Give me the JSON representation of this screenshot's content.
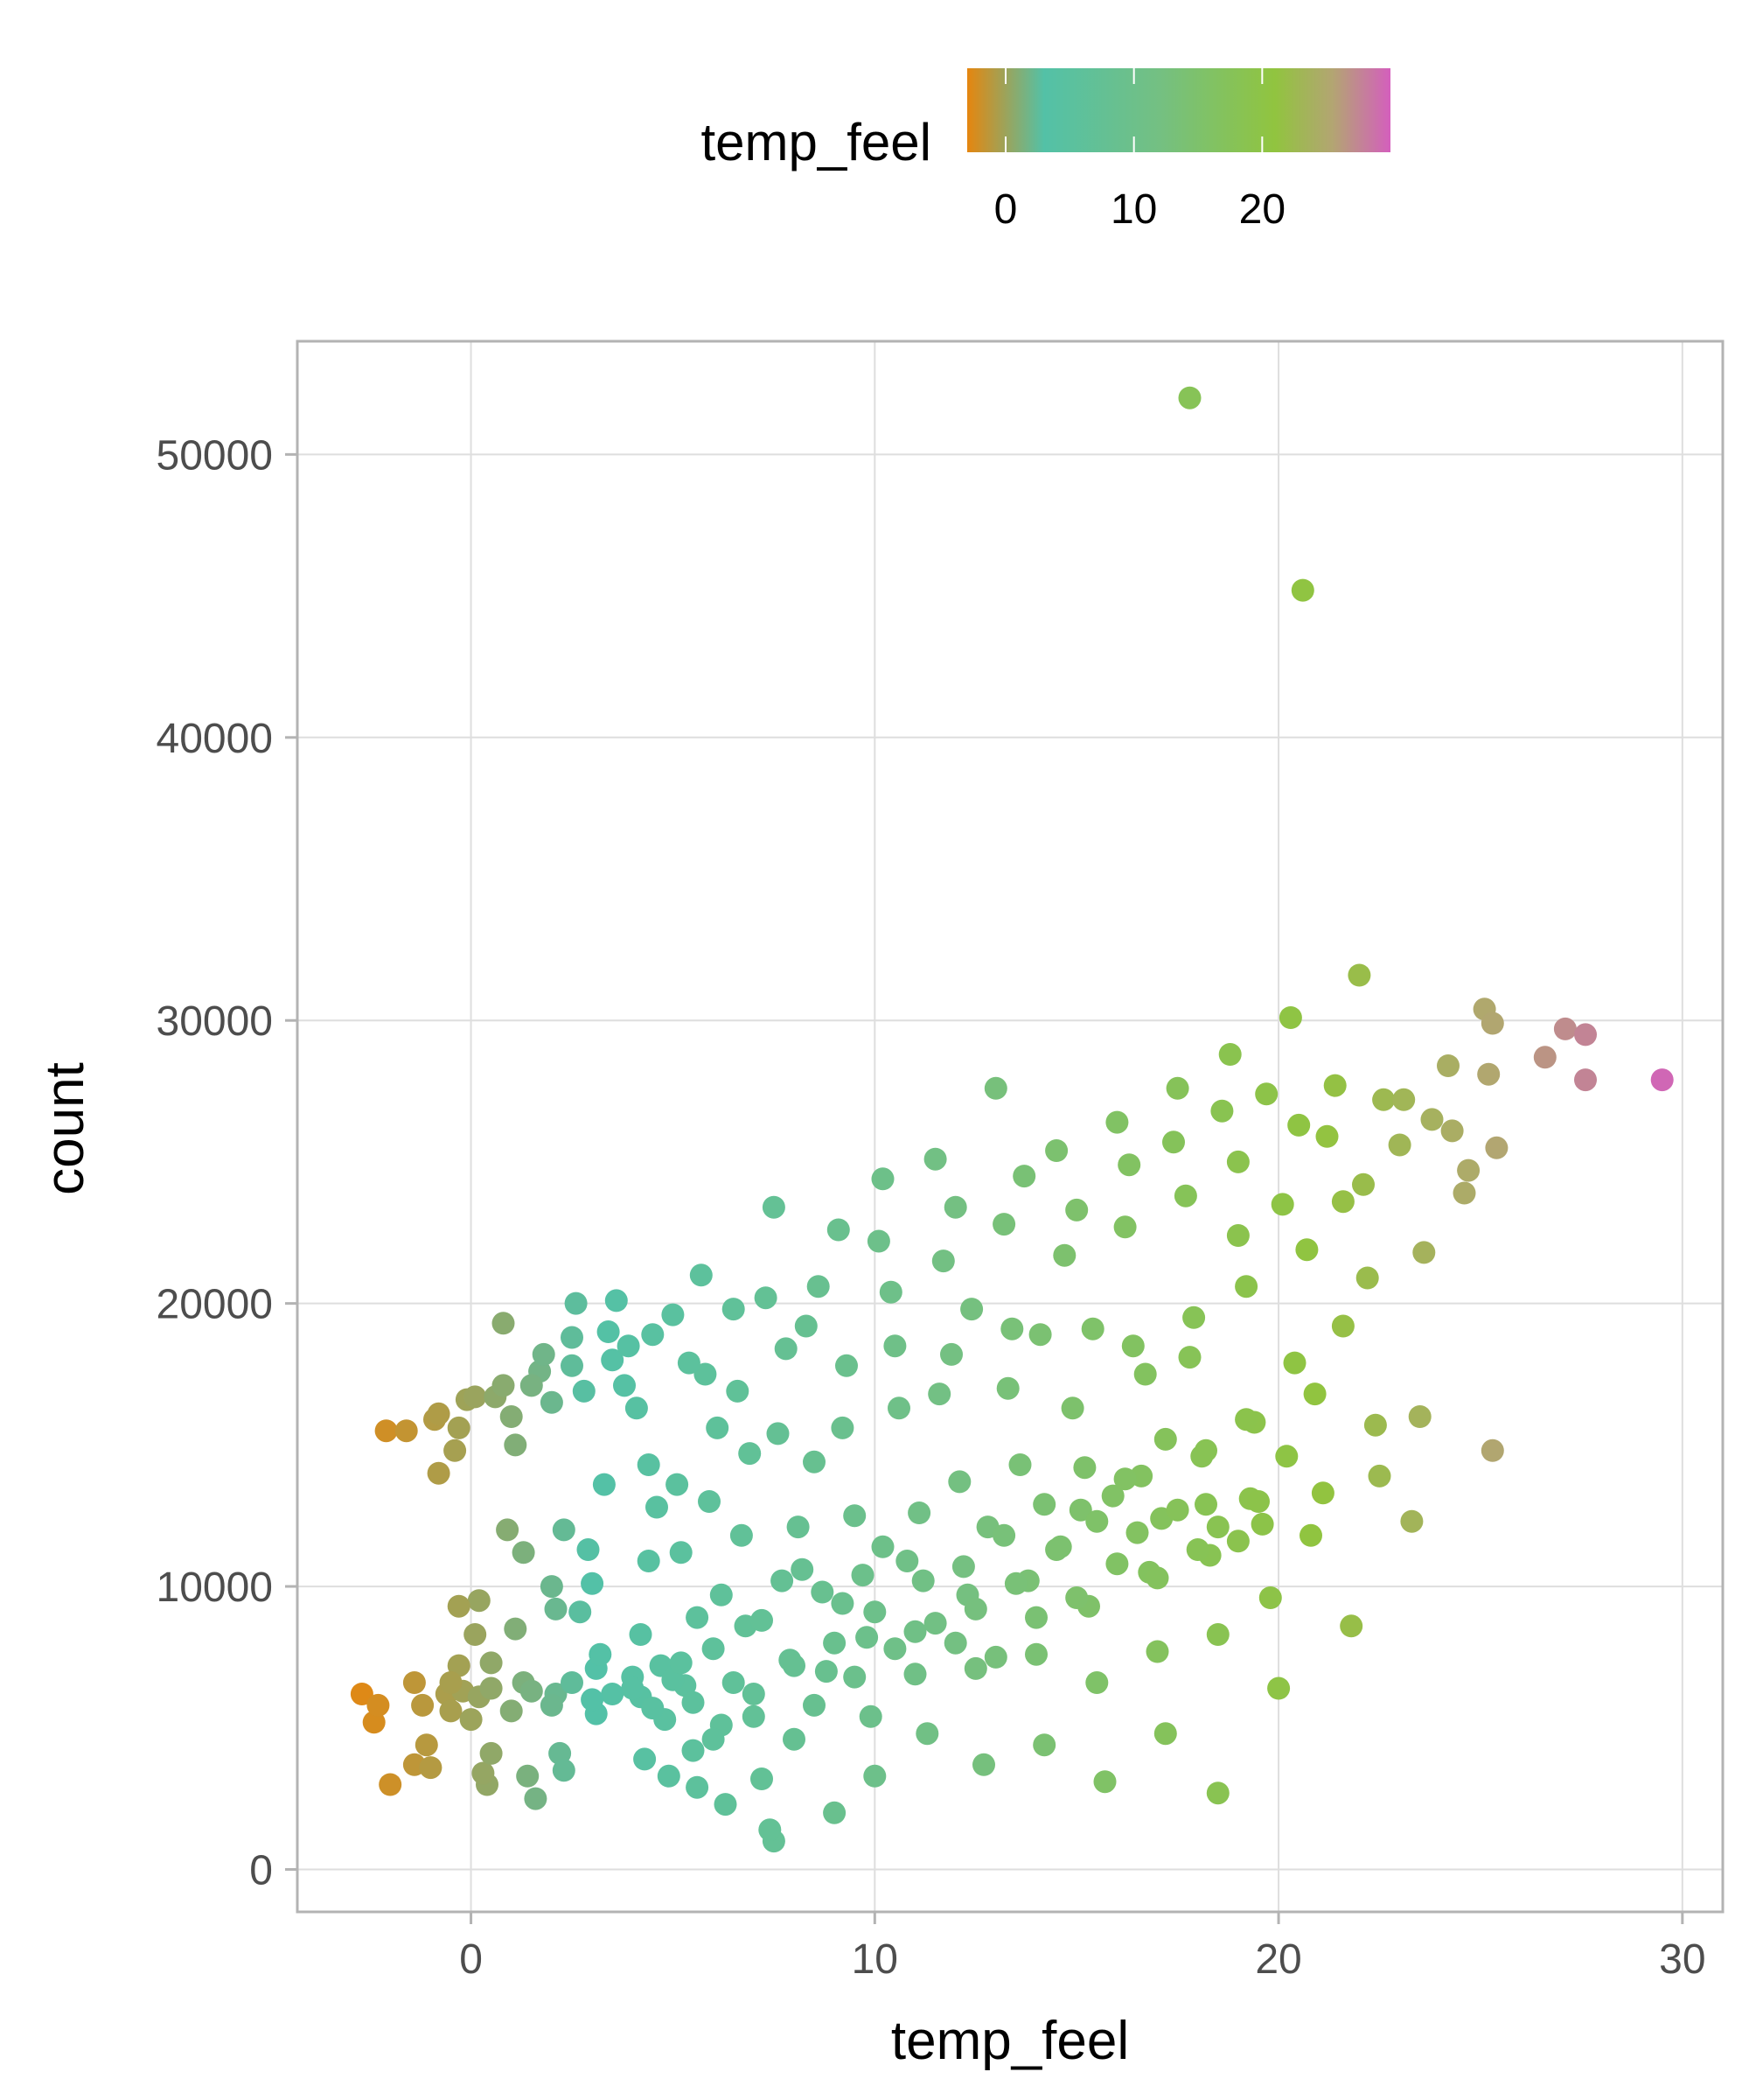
{
  "chart_data": {
    "type": "scatter",
    "title": "",
    "xlabel": "temp_feel",
    "ylabel": "count",
    "xlim": [
      -4.3,
      31.0
    ],
    "ylim": [
      -1500,
      54000
    ],
    "x_ticks": [
      0,
      10,
      20,
      30
    ],
    "x_tick_labels": [
      "0",
      "10",
      "20",
      "30"
    ],
    "y_ticks": [
      0,
      10000,
      20000,
      30000,
      40000,
      50000
    ],
    "y_tick_labels": [
      "0",
      "10000",
      "20000",
      "30000",
      "40000",
      "50000"
    ],
    "grid": true,
    "legend": {
      "placement": "top",
      "title": "temp_feel",
      "type": "colorbar",
      "ticks": [
        0,
        10,
        20
      ],
      "tick_labels": [
        "0",
        "10",
        "20"
      ],
      "range": [
        -3,
        30
      ],
      "color_stops": [
        {
          "value": -3,
          "color": "#e5860f"
        },
        {
          "value": 3,
          "color": "#53c1a7"
        },
        {
          "value": 12,
          "color": "#74c082"
        },
        {
          "value": 21,
          "color": "#91c43f"
        },
        {
          "value": 25.5,
          "color": "#b3a572"
        },
        {
          "value": 30,
          "color": "#d45fbd"
        }
      ]
    },
    "colors": {
      "panel_border": "#b3b3b3",
      "grid": "#dedede"
    },
    "points": [
      [
        -2.1,
        15500
      ],
      [
        -2.7,
        6200
      ],
      [
        -2.4,
        5200
      ],
      [
        -2.3,
        5800
      ],
      [
        -2.0,
        3000
      ],
      [
        -1.4,
        3700
      ],
      [
        -1.4,
        6600
      ],
      [
        -1.2,
        5800
      ],
      [
        -1.0,
        3600
      ],
      [
        -0.9,
        15900
      ],
      [
        -0.8,
        16100
      ],
      [
        -0.8,
        14000
      ],
      [
        -0.6,
        6200
      ],
      [
        -0.5,
        5600
      ],
      [
        -0.3,
        7200
      ],
      [
        -0.2,
        6300
      ],
      [
        -0.4,
        14800
      ],
      [
        -0.3,
        15600
      ],
      [
        -0.1,
        16600
      ],
      [
        0.1,
        16700
      ],
      [
        0.2,
        9500
      ],
      [
        0.1,
        8300
      ],
      [
        0.2,
        6100
      ],
      [
        0.4,
        3000
      ],
      [
        0.3,
        3400
      ],
      [
        0.5,
        4100
      ],
      [
        0.6,
        16700
      ],
      [
        0.8,
        17100
      ],
      [
        0.8,
        19300
      ],
      [
        0.9,
        12000
      ],
      [
        1.0,
        16000
      ],
      [
        1.1,
        15000
      ],
      [
        1.1,
        8500
      ],
      [
        1.3,
        11200
      ],
      [
        1.3,
        6600
      ],
      [
        1.4,
        3300
      ],
      [
        1.6,
        2500
      ],
      [
        1.7,
        17600
      ],
      [
        1.8,
        18200
      ],
      [
        2.0,
        16500
      ],
      [
        2.0,
        10000
      ],
      [
        2.1,
        9200
      ],
      [
        2.1,
        6200
      ],
      [
        2.2,
        4100
      ],
      [
        2.3,
        3500
      ],
      [
        2.5,
        17800
      ],
      [
        2.5,
        18800
      ],
      [
        2.6,
        20000
      ],
      [
        2.8,
        16900
      ],
      [
        2.9,
        11300
      ],
      [
        3.0,
        10100
      ],
      [
        3.1,
        7100
      ],
      [
        3.1,
        5500
      ],
      [
        3.4,
        19000
      ],
      [
        3.5,
        18000
      ],
      [
        3.6,
        20100
      ],
      [
        3.8,
        17100
      ],
      [
        3.9,
        18500
      ],
      [
        4.0,
        6800
      ],
      [
        4.2,
        6100
      ],
      [
        4.3,
        3900
      ],
      [
        4.4,
        14300
      ],
      [
        4.5,
        18900
      ],
      [
        4.6,
        12800
      ],
      [
        4.7,
        7200
      ],
      [
        4.8,
        5300
      ],
      [
        4.9,
        3300
      ],
      [
        5.0,
        19600
      ],
      [
        5.1,
        13600
      ],
      [
        5.2,
        11200
      ],
      [
        5.3,
        6500
      ],
      [
        5.5,
        4200
      ],
      [
        5.6,
        2900
      ],
      [
        5.7,
        21000
      ],
      [
        5.8,
        17500
      ],
      [
        5.9,
        13000
      ],
      [
        6.0,
        7800
      ],
      [
        6.2,
        5100
      ],
      [
        6.3,
        2300
      ],
      [
        6.5,
        19800
      ],
      [
        6.6,
        16900
      ],
      [
        6.7,
        11800
      ],
      [
        6.8,
        8600
      ],
      [
        7.0,
        6200
      ],
      [
        7.2,
        3200
      ],
      [
        7.3,
        20200
      ],
      [
        7.5,
        23400
      ],
      [
        7.6,
        15400
      ],
      [
        7.7,
        10200
      ],
      [
        7.9,
        7400
      ],
      [
        8.0,
        4600
      ],
      [
        7.5,
        1000
      ],
      [
        7.4,
        1400
      ],
      [
        8.3,
        19200
      ],
      [
        8.5,
        14400
      ],
      [
        8.7,
        9800
      ],
      [
        8.8,
        7000
      ],
      [
        9.0,
        2000
      ],
      [
        9.1,
        22600
      ],
      [
        9.3,
        17800
      ],
      [
        9.5,
        12500
      ],
      [
        9.8,
        8200
      ],
      [
        9.9,
        5400
      ],
      [
        10.0,
        3300
      ],
      [
        10.2,
        24400
      ],
      [
        10.4,
        20400
      ],
      [
        10.6,
        16300
      ],
      [
        10.8,
        10900
      ],
      [
        11.0,
        8400
      ],
      [
        11.3,
        4800
      ],
      [
        11.5,
        25100
      ],
      [
        11.7,
        21500
      ],
      [
        11.9,
        18200
      ],
      [
        12.1,
        13700
      ],
      [
        12.3,
        9700
      ],
      [
        12.5,
        7100
      ],
      [
        12.7,
        3700
      ],
      [
        13.0,
        27600
      ],
      [
        13.2,
        22800
      ],
      [
        13.4,
        19100
      ],
      [
        13.6,
        14300
      ],
      [
        13.8,
        10200
      ],
      [
        14.0,
        7600
      ],
      [
        14.2,
        4400
      ],
      [
        14.5,
        25400
      ],
      [
        14.7,
        21700
      ],
      [
        14.9,
        16300
      ],
      [
        15.1,
        12700
      ],
      [
        15.3,
        9300
      ],
      [
        15.5,
        6600
      ],
      [
        15.7,
        3100
      ],
      [
        16.0,
        26400
      ],
      [
        16.2,
        22700
      ],
      [
        16.4,
        18500
      ],
      [
        16.6,
        13900
      ],
      [
        16.8,
        10500
      ],
      [
        17.0,
        7700
      ],
      [
        17.2,
        4800
      ],
      [
        17.5,
        27600
      ],
      [
        17.7,
        23800
      ],
      [
        17.8,
        52000
      ],
      [
        17.9,
        19500
      ],
      [
        18.1,
        14600
      ],
      [
        18.3,
        11100
      ],
      [
        18.5,
        8300
      ],
      [
        18.5,
        2700
      ],
      [
        18.8,
        28800
      ],
      [
        19.0,
        25000
      ],
      [
        19.2,
        20600
      ],
      [
        19.4,
        15800
      ],
      [
        19.6,
        12200
      ],
      [
        19.8,
        9600
      ],
      [
        20.0,
        6400
      ],
      [
        20.3,
        30100
      ],
      [
        20.5,
        26300
      ],
      [
        20.6,
        45200
      ],
      [
        20.7,
        21900
      ],
      [
        20.9,
        16800
      ],
      [
        21.1,
        13300
      ],
      [
        21.4,
        27700
      ],
      [
        21.6,
        23600
      ],
      [
        21.8,
        8600
      ],
      [
        22.0,
        31600
      ],
      [
        22.2,
        20900
      ],
      [
        22.4,
        15700
      ],
      [
        22.6,
        27200
      ],
      [
        23.0,
        25600
      ],
      [
        23.3,
        12300
      ],
      [
        23.5,
        16000
      ],
      [
        23.8,
        26500
      ],
      [
        24.2,
        28400
      ],
      [
        24.6,
        23900
      ],
      [
        25.1,
        30400
      ],
      [
        25.2,
        28100
      ],
      [
        25.3,
        14800
      ],
      [
        25.4,
        25500
      ],
      [
        25.3,
        29900
      ],
      [
        26.6,
        28700
      ],
      [
        27.1,
        29700
      ],
      [
        27.6,
        29500
      ],
      [
        27.6,
        27900
      ],
      [
        29.5,
        27900
      ],
      [
        -1.6,
        15500
      ],
      [
        -1.1,
        4400
      ],
      [
        -0.3,
        9300
      ],
      [
        0.5,
        7300
      ],
      [
        1.5,
        17100
      ],
      [
        2.3,
        12000
      ],
      [
        2.7,
        9100
      ],
      [
        3.3,
        13600
      ],
      [
        4.1,
        16300
      ],
      [
        4.4,
        10900
      ],
      [
        5.4,
        17900
      ],
      [
        5.6,
        8900
      ],
      [
        6.1,
        15600
      ],
      [
        6.9,
        14700
      ],
      [
        7.8,
        18400
      ],
      [
        8.1,
        12100
      ],
      [
        8.6,
        20600
      ],
      [
        9.2,
        15600
      ],
      [
        9.7,
        10400
      ],
      [
        10.1,
        22200
      ],
      [
        10.5,
        18500
      ],
      [
        11.1,
        12600
      ],
      [
        11.6,
        16800
      ],
      [
        12.0,
        23400
      ],
      [
        12.4,
        19800
      ],
      [
        12.8,
        12100
      ],
      [
        13.3,
        17000
      ],
      [
        13.7,
        24500
      ],
      [
        14.1,
        18900
      ],
      [
        14.6,
        11400
      ],
      [
        15.0,
        23300
      ],
      [
        15.4,
        19100
      ],
      [
        15.9,
        13200
      ],
      [
        16.3,
        24900
      ],
      [
        16.7,
        17500
      ],
      [
        17.1,
        12400
      ],
      [
        17.4,
        25700
      ],
      [
        17.8,
        18100
      ],
      [
        18.2,
        12900
      ],
      [
        18.6,
        26800
      ],
      [
        19.0,
        22400
      ],
      [
        19.3,
        13100
      ],
      [
        19.7,
        27400
      ],
      [
        20.1,
        23500
      ],
      [
        20.4,
        17900
      ],
      [
        20.8,
        11800
      ],
      [
        21.2,
        25900
      ],
      [
        21.6,
        19200
      ],
      [
        22.1,
        24200
      ],
      [
        22.5,
        13900
      ],
      [
        23.1,
        27200
      ],
      [
        23.6,
        21800
      ],
      [
        24.3,
        26100
      ],
      [
        24.7,
        24700
      ],
      [
        12.0,
        8000
      ],
      [
        12.5,
        9200
      ],
      [
        13.0,
        7500
      ],
      [
        13.5,
        10100
      ],
      [
        14.0,
        8900
      ],
      [
        14.5,
        11300
      ],
      [
        15.0,
        9600
      ],
      [
        15.5,
        12300
      ],
      [
        16.0,
        10800
      ],
      [
        16.5,
        11900
      ],
      [
        17.0,
        10300
      ],
      [
        17.5,
        12700
      ],
      [
        18.0,
        11300
      ],
      [
        18.5,
        12100
      ],
      [
        19.0,
        11600
      ],
      [
        19.5,
        13000
      ],
      [
        11.0,
        6900
      ],
      [
        11.5,
        8700
      ],
      [
        10.5,
        7800
      ],
      [
        10.0,
        9100
      ],
      [
        9.5,
        6800
      ],
      [
        9.0,
        8000
      ],
      [
        8.5,
        5800
      ],
      [
        8.0,
        7200
      ],
      [
        7.0,
        5400
      ],
      [
        6.5,
        6600
      ],
      [
        6.0,
        4600
      ],
      [
        5.5,
        5900
      ],
      [
        5.0,
        6700
      ],
      [
        4.5,
        5700
      ],
      [
        4.0,
        6400
      ],
      [
        3.5,
        6200
      ],
      [
        3.0,
        6000
      ],
      [
        2.5,
        6600
      ],
      [
        2.0,
        5800
      ],
      [
        1.5,
        6300
      ],
      [
        1.0,
        5600
      ],
      [
        0.5,
        6400
      ],
      [
        0.0,
        5300
      ],
      [
        -0.5,
        6600
      ],
      [
        13.2,
        11800
      ],
      [
        14.2,
        12900
      ],
      [
        15.2,
        14200
      ],
      [
        16.2,
        13800
      ],
      [
        17.2,
        15200
      ],
      [
        18.2,
        14800
      ],
      [
        19.2,
        15900
      ],
      [
        20.2,
        14600
      ],
      [
        12.2,
        10700
      ],
      [
        11.2,
        10200
      ],
      [
        10.2,
        11400
      ],
      [
        9.2,
        9400
      ],
      [
        8.2,
        10600
      ],
      [
        7.2,
        8800
      ],
      [
        6.2,
        9700
      ],
      [
        5.2,
        7300
      ],
      [
        4.2,
        8300
      ],
      [
        3.2,
        7600
      ]
    ]
  }
}
